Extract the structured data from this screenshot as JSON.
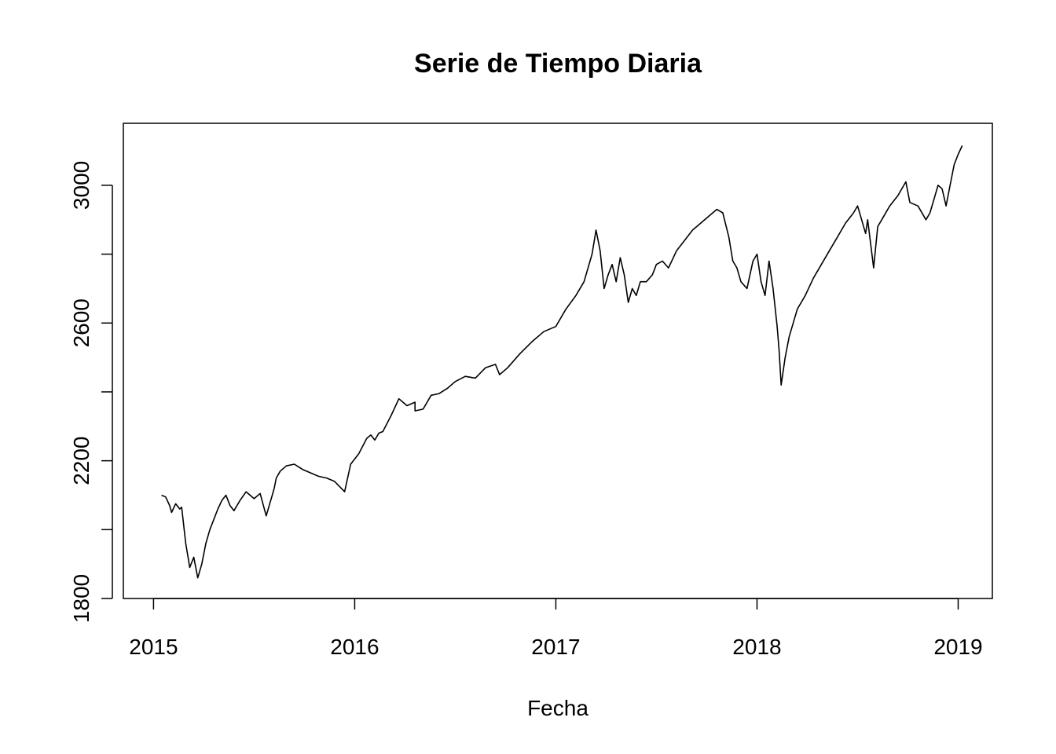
{
  "chart_data": {
    "type": "line",
    "title": "Serie de Tiempo Diaria",
    "xlabel": "Fecha",
    "ylabel": "",
    "x_ticks": [
      {
        "value": 2015.0,
        "label": "2015"
      },
      {
        "value": 2016.0,
        "label": "2016"
      },
      {
        "value": 2017.0,
        "label": "2017"
      },
      {
        "value": 2018.0,
        "label": "2018"
      },
      {
        "value": 2019.0,
        "label": "2019"
      }
    ],
    "y_ticks": [
      {
        "value": 1800,
        "label": "1800"
      },
      {
        "value": 2000,
        "label": ""
      },
      {
        "value": 2200,
        "label": "2200"
      },
      {
        "value": 2400,
        "label": ""
      },
      {
        "value": 2600,
        "label": "2600"
      },
      {
        "value": 2800,
        "label": ""
      },
      {
        "value": 3000,
        "label": "3000"
      }
    ],
    "xlim": [
      2014.85,
      2019.17
    ],
    "ylim": [
      1800,
      3180
    ],
    "grid": false,
    "legend": "none",
    "series": [
      {
        "color": "#000000",
        "x": [
          2015.04,
          2015.06,
          2015.08,
          2015.09,
          2015.11,
          2015.13,
          2015.14,
          2015.16,
          2015.18,
          2015.2,
          2015.22,
          2015.24,
          2015.26,
          2015.28,
          2015.3,
          2015.32,
          2015.34,
          2015.36,
          2015.38,
          2015.4,
          2015.43,
          2015.46,
          2015.5,
          2015.53,
          2015.56,
          2015.59,
          2015.6,
          2015.61,
          2015.63,
          2015.66,
          2015.7,
          2015.74,
          2015.78,
          2015.82,
          2015.86,
          2015.9,
          2015.95,
          2015.98,
          2016.02,
          2016.06,
          2016.08,
          2016.1,
          2016.12,
          2016.14,
          2016.18,
          2016.22,
          2016.26,
          2016.3,
          2016.3,
          2016.34,
          2016.38,
          2016.42,
          2016.46,
          2016.5,
          2016.55,
          2016.6,
          2016.65,
          2016.7,
          2016.72,
          2016.76,
          2016.82,
          2016.88,
          2016.94,
          2017.0,
          2017.05,
          2017.1,
          2017.14,
          2017.18,
          2017.2,
          2017.22,
          2017.24,
          2017.26,
          2017.28,
          2017.3,
          2017.32,
          2017.34,
          2017.36,
          2017.38,
          2017.4,
          2017.42,
          2017.45,
          2017.48,
          2017.5,
          2017.53,
          2017.56,
          2017.6,
          2017.64,
          2017.68,
          2017.72,
          2017.76,
          2017.8,
          2017.83,
          2017.86,
          2017.88,
          2017.9,
          2017.92,
          2017.95,
          2017.98,
          2018.0,
          2018.02,
          2018.04,
          2018.06,
          2018.08,
          2018.1,
          2018.11,
          2018.12,
          2018.14,
          2018.16,
          2018.2,
          2018.24,
          2018.28,
          2018.32,
          2018.36,
          2018.4,
          2018.44,
          2018.48,
          2018.5,
          2018.54,
          2018.55,
          2018.58,
          2018.6,
          2018.62,
          2018.66,
          2018.7,
          2018.74,
          2018.76,
          2018.8,
          2018.84,
          2018.86,
          2018.88,
          2018.9,
          2018.92,
          2018.94,
          2018.96,
          2018.98,
          2019.0,
          2019.02
        ],
        "y": [
          2100,
          2095,
          2070,
          2050,
          2075,
          2060,
          2065,
          1960,
          1890,
          1920,
          1860,
          1900,
          1960,
          2000,
          2030,
          2060,
          2085,
          2100,
          2070,
          2055,
          2085,
          2110,
          2090,
          2105,
          2040,
          2100,
          2120,
          2150,
          2170,
          2185,
          2190,
          2175,
          2165,
          2155,
          2150,
          2140,
          2110,
          2190,
          2220,
          2265,
          2275,
          2260,
          2280,
          2285,
          2330,
          2380,
          2360,
          2370,
          2345,
          2350,
          2390,
          2395,
          2410,
          2430,
          2445,
          2440,
          2470,
          2480,
          2450,
          2470,
          2510,
          2545,
          2575,
          2590,
          2640,
          2680,
          2720,
          2800,
          2870,
          2810,
          2700,
          2740,
          2770,
          2720,
          2790,
          2740,
          2660,
          2700,
          2680,
          2720,
          2720,
          2740,
          2770,
          2780,
          2760,
          2810,
          2840,
          2870,
          2890,
          2910,
          2930,
          2920,
          2850,
          2780,
          2760,
          2720,
          2700,
          2780,
          2800,
          2720,
          2680,
          2780,
          2700,
          2590,
          2520,
          2420,
          2500,
          2560,
          2640,
          2680,
          2730,
          2770,
          2810,
          2850,
          2890,
          2920,
          2940,
          2860,
          2900,
          2760,
          2880,
          2900,
          2940,
          2970,
          3010,
          2950,
          2940,
          2900,
          2920,
          2960,
          3000,
          2990,
          2940,
          3000,
          3060,
          3090,
          3115
        ]
      }
    ]
  }
}
